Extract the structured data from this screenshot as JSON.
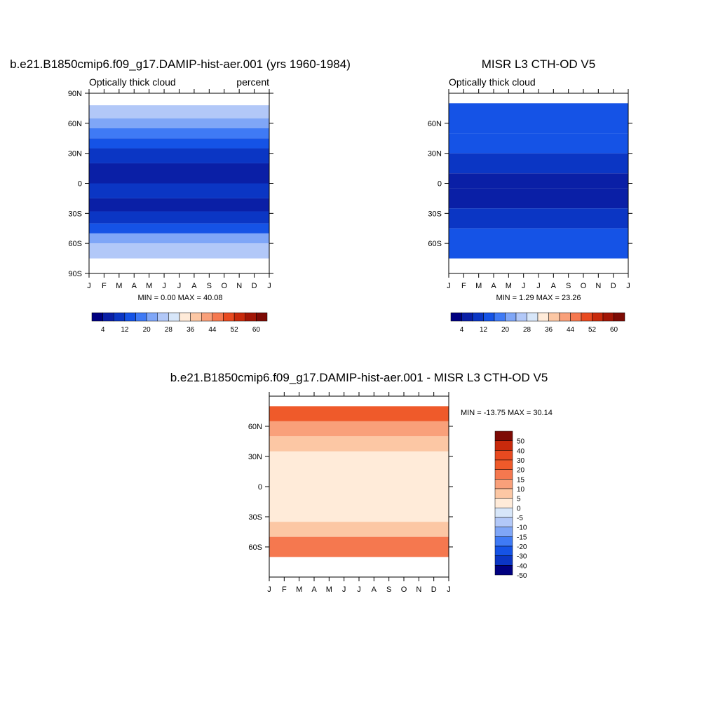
{
  "palette": [
    "#000080",
    "#0a1fa6",
    "#0b36c4",
    "#1553e6",
    "#3f7af5",
    "#7fa6f7",
    "#b2c8f8",
    "#d7e6f9",
    "#ffebd9",
    "#fcc7a4",
    "#f9a07a",
    "#f5784f",
    "#e84a20",
    "#c82a0c",
    "#a21606",
    "#7d0b05"
  ],
  "diff_palette": [
    "#000080",
    "#0b36c4",
    "#1553e6",
    "#3f7af5",
    "#7fa6f7",
    "#b2c8f8",
    "#d7e6f9",
    "#ffebd9",
    "#fcc7a4",
    "#f9a07a",
    "#f5784f",
    "#ef5a2a",
    "#e84a20",
    "#c82a0c",
    "#7d0b05"
  ],
  "chart_data": [
    {
      "type": "heatmap",
      "title": "b.e21.B1850cmip6.f09_g17.DAMIP-hist-aer.001 (yrs 1960-1984)",
      "left_label": "Optically thick cloud",
      "right_label": "percent",
      "xticks": [
        "J",
        "F",
        "M",
        "A",
        "M",
        "J",
        "J",
        "A",
        "S",
        "O",
        "N",
        "D",
        "J"
      ],
      "yticks": [
        "90N",
        "60N",
        "30N",
        "0",
        "30S",
        "60S",
        "90S"
      ],
      "ylim": [
        -90,
        90
      ],
      "stats": "MIN =   0.00 MAX =  40.08",
      "colorbar_labels": [
        "4",
        "12",
        "20",
        "28",
        "36",
        "44",
        "52",
        "60"
      ],
      "bands": [
        {
          "lat": [
            65,
            78
          ],
          "level": 6
        },
        {
          "lat": [
            55,
            65
          ],
          "level": 5
        },
        {
          "lat": [
            45,
            55
          ],
          "level": 4
        },
        {
          "lat": [
            35,
            45
          ],
          "level": 3
        },
        {
          "lat": [
            20,
            35
          ],
          "level": 2
        },
        {
          "lat": [
            0,
            20
          ],
          "level": 1
        },
        {
          "lat": [
            -15,
            0
          ],
          "level": 2
        },
        {
          "lat": [
            -28,
            -15
          ],
          "level": 1
        },
        {
          "lat": [
            -40,
            -28
          ],
          "level": 2
        },
        {
          "lat": [
            -50,
            -40
          ],
          "level": 3
        },
        {
          "lat": [
            -60,
            -50
          ],
          "level": 5
        },
        {
          "lat": [
            -75,
            -60
          ],
          "level": 6
        }
      ]
    },
    {
      "type": "heatmap",
      "title": "MISR L3 CTH-OD V5",
      "left_label": "Optically thick cloud",
      "right_label": "",
      "xticks": [
        "J",
        "F",
        "M",
        "A",
        "M",
        "J",
        "J",
        "A",
        "S",
        "O",
        "N",
        "D",
        "J"
      ],
      "yticks": [
        "60N",
        "30N",
        "0",
        "30S",
        "60S"
      ],
      "ylim": [
        -90,
        90
      ],
      "stats": "MIN =   1.29 MAX =  23.26",
      "colorbar_labels": [
        "4",
        "12",
        "20",
        "28",
        "36",
        "44",
        "52",
        "60"
      ],
      "bands": [
        {
          "lat": [
            50,
            80
          ],
          "level": 3
        },
        {
          "lat": [
            30,
            50
          ],
          "level": 3
        },
        {
          "lat": [
            10,
            30
          ],
          "level": 2
        },
        {
          "lat": [
            -5,
            10
          ],
          "level": 1
        },
        {
          "lat": [
            -25,
            -5
          ],
          "level": 1
        },
        {
          "lat": [
            -45,
            -25
          ],
          "level": 2
        },
        {
          "lat": [
            -75,
            -45
          ],
          "level": 3
        }
      ]
    },
    {
      "type": "heatmap",
      "title": "b.e21.B1850cmip6.f09_g17.DAMIP-hist-aer.001 - MISR L3 CTH-OD V5",
      "xticks": [
        "J",
        "F",
        "M",
        "A",
        "M",
        "J",
        "J",
        "A",
        "S",
        "O",
        "N",
        "D",
        "J"
      ],
      "yticks": [
        "60N",
        "30N",
        "0",
        "30S",
        "60S"
      ],
      "ylim": [
        -90,
        90
      ],
      "stats": "MIN = -13.75 MAX =  30.14",
      "colorbar_labels": [
        "50",
        "40",
        "30",
        "20",
        "15",
        "10",
        "5",
        "0",
        "-5",
        "-10",
        "-15",
        "-20",
        "-30",
        "-40",
        "-50"
      ],
      "bands": [
        {
          "lat": [
            65,
            80
          ],
          "level": 11
        },
        {
          "lat": [
            50,
            65
          ],
          "level": 9
        },
        {
          "lat": [
            35,
            50
          ],
          "level": 8
        },
        {
          "lat": [
            -35,
            35
          ],
          "level": 7
        },
        {
          "lat": [
            -50,
            -35
          ],
          "level": 8
        },
        {
          "lat": [
            -70,
            -50
          ],
          "level": 10
        }
      ]
    }
  ]
}
